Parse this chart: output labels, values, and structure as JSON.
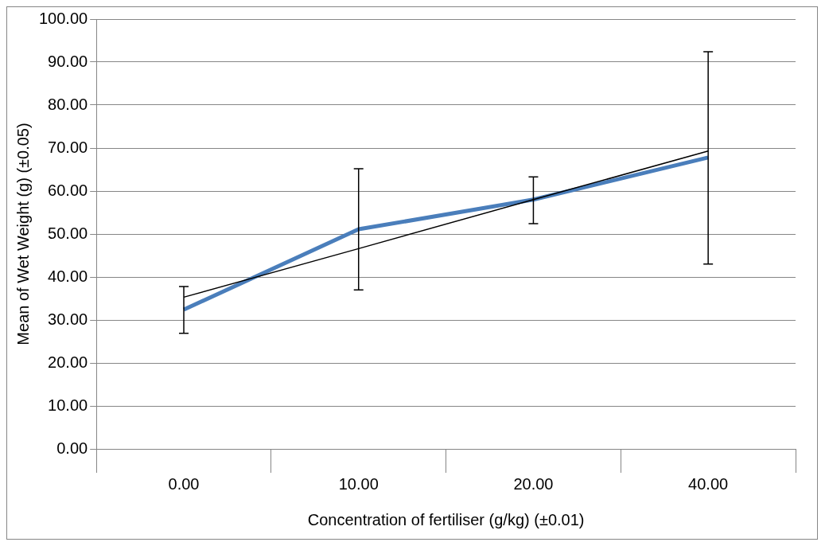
{
  "chart_data": {
    "type": "line",
    "xlabel": "Concentration of fertiliser (g/kg) (±0.01)",
    "ylabel": "Mean of Wet Weight (g) (±0.05)",
    "categories": [
      "0.00",
      "10.00",
      "20.00",
      "40.00"
    ],
    "series": [
      {
        "color": "#4a7ebb",
        "values": [
          32.4,
          51.1,
          58.0,
          67.8
        ],
        "errors": [
          [
            26.9,
            37.8
          ],
          [
            37.0,
            65.2
          ],
          [
            52.4,
            63.3
          ],
          [
            43.0,
            92.4
          ]
        ]
      },
      {
        "type": "line",
        "color": "#000000",
        "x": [
          "0.00",
          "10.00",
          "20.00",
          "40.00"
        ],
        "values": [
          35.3,
          46.6,
          58.0,
          69.3
        ]
      }
    ],
    "ylim": [
      0,
      100
    ],
    "yticks": [
      {
        "value": 0,
        "label": "0.00"
      },
      {
        "value": 10,
        "label": "10.00"
      },
      {
        "value": 20,
        "label": "20.00"
      },
      {
        "value": 30,
        "label": "30.00"
      },
      {
        "value": 40,
        "label": "40.00"
      },
      {
        "value": 50,
        "label": "50.00"
      },
      {
        "value": 60,
        "label": "60.00"
      },
      {
        "value": 70,
        "label": "70.00"
      },
      {
        "value": 80,
        "label": "80.00"
      },
      {
        "value": 90,
        "label": "90.00"
      },
      {
        "value": 100,
        "label": "100.00"
      }
    ],
    "grid": "y",
    "legend": false,
    "marker": "none"
  }
}
